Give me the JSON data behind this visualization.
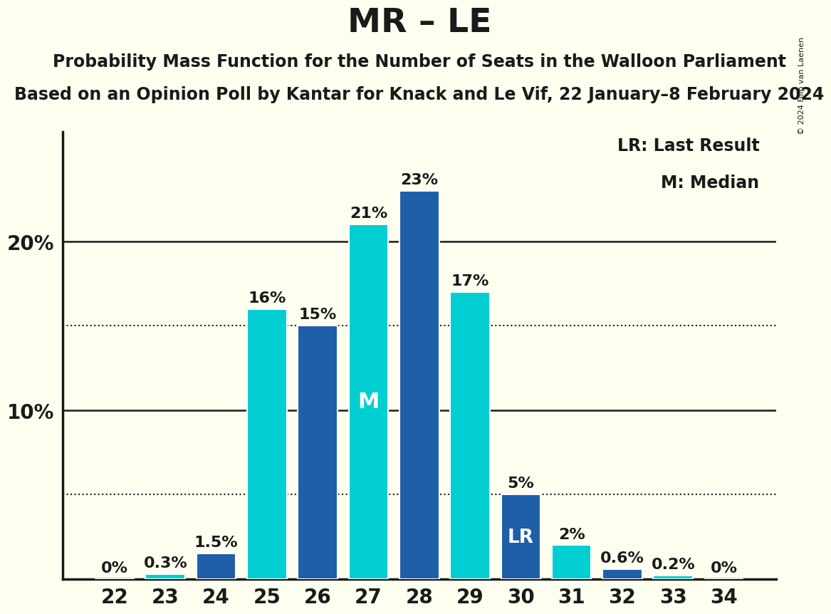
{
  "title": "MR – LE",
  "subtitle1": "Probability Mass Function for the Number of Seats in the Walloon Parliament",
  "subtitle2": "Based on an Opinion Poll by Kantar for Knack and Le Vif, 22 January–8 February 2024",
  "copyright": "© 2024 Filip van Laenen",
  "seats": [
    22,
    23,
    24,
    25,
    26,
    27,
    28,
    29,
    30,
    31,
    32,
    33,
    34
  ],
  "values": [
    0.0,
    0.3,
    1.5,
    16.0,
    15.0,
    21.0,
    23.0,
    17.0,
    5.0,
    2.0,
    0.6,
    0.2,
    0.0
  ],
  "labels": [
    "0%",
    "0.3%",
    "1.5%",
    "16%",
    "15%",
    "21%",
    "23%",
    "17%",
    "5%",
    "2%",
    "0.6%",
    "0.2%",
    "0%"
  ],
  "colors": [
    "#00CED1",
    "#00CED1",
    "#1E5FA8",
    "#00CED1",
    "#1E5FA8",
    "#00CED1",
    "#1E5FA8",
    "#00CED1",
    "#1E5FA8",
    "#00CED1",
    "#1E5FA8",
    "#00CED1",
    "#1E5FA8"
  ],
  "median_seat": 27,
  "lr_seat": 30,
  "median_label": "M",
  "lr_label": "LR",
  "legend_lr": "LR: Last Result",
  "legend_m": "M: Median",
  "dotted_lines": [
    5.0,
    15.0
  ],
  "solid_lines": [
    10.0,
    20.0
  ],
  "background_color": "#FFFFF0",
  "bar_edge_color": "#FFFFFF",
  "axis_color": "#1A1A1A",
  "text_color": "#1A1A1A",
  "title_fontsize": 34,
  "subtitle_fontsize": 17,
  "tick_fontsize": 20,
  "legend_fontsize": 17,
  "bar_label_fontsize": 16,
  "bar_inner_label_fontsize": 22,
  "lr_inner_label_fontsize": 19,
  "ylim_max": 26.5
}
